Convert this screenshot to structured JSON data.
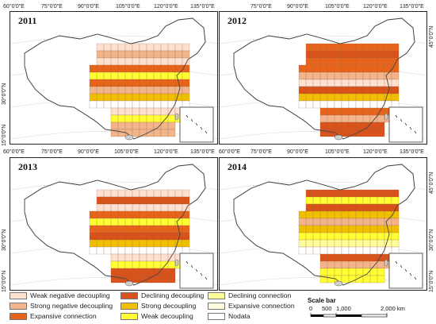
{
  "panels": [
    {
      "year": "2011",
      "lon_labels": [
        "60°0'0\"E",
        "75°0'0\"E",
        "90°0'0\"E",
        "105°0'0\"E",
        "120°0'0\"E",
        "135°0'0\"E"
      ],
      "lat_labels": [
        "30°0'0\"N",
        "15°0'0\"N"
      ],
      "right_lat_labels": []
    },
    {
      "year": "2012",
      "lon_labels": [
        "60°0'0\"E",
        "75°0'0\"E",
        "90°0'0\"E",
        "105°0'0\"E",
        "120°0'0\"E",
        "135°0'0\"E"
      ],
      "lat_labels": [],
      "right_lat_labels": [
        "45°0'0\"N",
        "30°0'0\"N",
        "15°0'0\"N"
      ]
    },
    {
      "year": "2013",
      "lon_labels": [
        "60°0'0\"E",
        "75°0'0\"E",
        "90°0'0\"E",
        "105°0'0\"E",
        "120°0'0\"E",
        "135°0'0\"E"
      ],
      "lat_labels": [
        "30°0'0\"N",
        "15°0'0\"N"
      ],
      "right_lat_labels": []
    },
    {
      "year": "2014",
      "lon_labels": [],
      "lat_labels": [],
      "right_lat_labels": [
        "45°0'0\"N",
        "30°0'0\"N",
        "15°0'0\"N"
      ]
    }
  ],
  "legend": [
    {
      "label": "Weak negative decoupling",
      "color": "#fde0cf"
    },
    {
      "label": "Strong negative decoupling",
      "color": "#f2b48a"
    },
    {
      "label": "Expansive connection",
      "color": "#e8641a"
    },
    {
      "label": "Declining decoupling",
      "color": "#d9521a"
    },
    {
      "label": "Strong decoupling",
      "color": "#f0c000"
    },
    {
      "label": "Weak decoupling",
      "color": "#ffff33"
    },
    {
      "label": "Declining connection",
      "color": "#ffff99"
    },
    {
      "label": "Expansive connection",
      "color": "#fffbe0"
    },
    {
      "label": "Nodata",
      "color": "#ffffff"
    }
  ],
  "scale_bar": {
    "title": "Scale bar",
    "labels": [
      "0",
      "500",
      "1,000",
      "2,000 km"
    ]
  }
}
